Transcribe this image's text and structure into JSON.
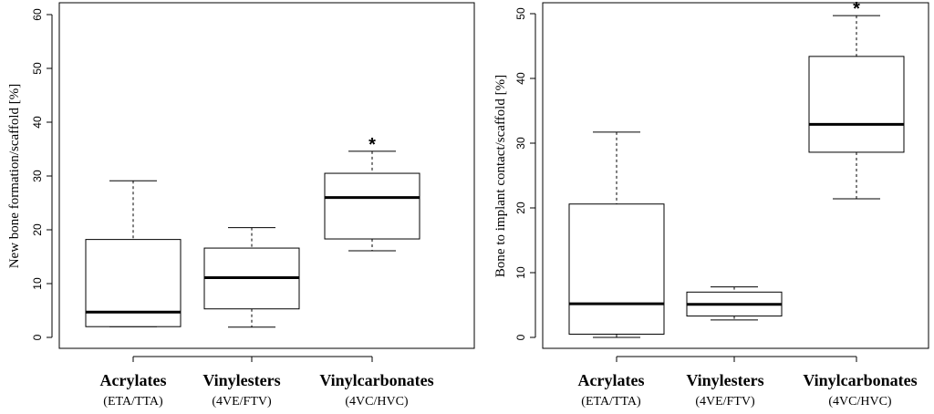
{
  "chart_data": [
    {
      "type": "box",
      "ylabel": "New bone formation/scaffold [%]",
      "ylim": [
        0,
        60
      ],
      "yticks": [
        0,
        10,
        20,
        30,
        40,
        50,
        60
      ],
      "groups": [
        {
          "name": "Acrylates",
          "sub": "(ETA/TTA)",
          "min": 2,
          "q1": 2,
          "median": 4.7,
          "q3": 18.2,
          "max": 29.1,
          "marker": ""
        },
        {
          "name": "Vinylesters",
          "sub": "(4VE/FTV)",
          "min": 1.9,
          "q1": 5.3,
          "median": 11.1,
          "q3": 16.6,
          "max": 20.4,
          "marker": ""
        },
        {
          "name": "Vinylcarbonates",
          "sub": "(4VC/HVC)",
          "min": 16.1,
          "q1": 18.3,
          "median": 26,
          "q3": 30.5,
          "max": 34.6,
          "marker": "*"
        }
      ]
    },
    {
      "type": "box",
      "ylabel": "Bone to implant contact/scaffold [%]",
      "ylim": [
        0,
        50
      ],
      "yticks": [
        0,
        10,
        20,
        30,
        40,
        50
      ],
      "groups": [
        {
          "name": "Acrylates",
          "sub": "(ETA/TTA)",
          "min": 0,
          "q1": 0.5,
          "median": 5.2,
          "q3": 20.6,
          "max": 31.7,
          "marker": ""
        },
        {
          "name": "Vinylesters",
          "sub": "(4VE/FTV)",
          "min": 2.7,
          "q1": 3.3,
          "median": 5.1,
          "q3": 7,
          "max": 7.8,
          "marker": ""
        },
        {
          "name": "Vinylcarbonates",
          "sub": "(4VC/HVC)",
          "min": 21.4,
          "q1": 28.6,
          "median": 32.9,
          "q3": 43.4,
          "max": 49.7,
          "marker": "*"
        }
      ]
    }
  ]
}
